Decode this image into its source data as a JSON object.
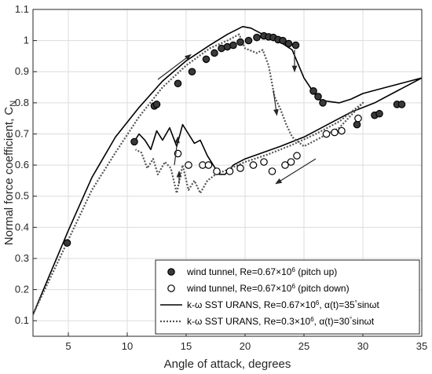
{
  "chart_data": {
    "type": "scatter",
    "xlabel": "Angle of attack, degrees",
    "ylabel_main": "Normal force coefficient, C",
    "ylabel_sub": "N",
    "xlim": [
      2,
      35
    ],
    "ylim": [
      0.05,
      1.1
    ],
    "xticks": [
      5,
      10,
      15,
      20,
      25,
      30,
      35
    ],
    "yticks": [
      0.1,
      0.2,
      0.3,
      0.4,
      0.5,
      0.6,
      0.7,
      0.8,
      0.9,
      1,
      1.1
    ],
    "grid": true,
    "legend_position": "bottom-right",
    "legend": [
      {
        "marker": "filled-circle",
        "prefix": "wind tunnel, Re=0.67×10",
        "sup": "6",
        "suffix": " (pitch up)"
      },
      {
        "marker": "open-circle",
        "prefix": "wind tunnel, Re=0.67×10",
        "sup": "6",
        "suffix": " (pitch down)"
      },
      {
        "marker": "solid-line",
        "prefix": "k-ω SST URANS, Re=0.67×10",
        "sup": "6",
        "suffix": ", α(t)=35",
        "deg": "°",
        "tail": "sinωt"
      },
      {
        "marker": "dotted-line",
        "prefix": "k-ω SST URANS, Re=0.3×10",
        "sup": "6",
        "suffix": ", α(t)=30",
        "deg": "°",
        "tail": "sinωt"
      }
    ],
    "series": [
      {
        "kind": "filled-markers",
        "points": [
          [
            4.9,
            0.35
          ],
          [
            10.6,
            0.675
          ],
          [
            12.3,
            0.79
          ],
          [
            12.5,
            0.795
          ],
          [
            14.3,
            0.862
          ],
          [
            15.5,
            0.9
          ],
          [
            16.7,
            0.94
          ],
          [
            17.4,
            0.96
          ],
          [
            18.0,
            0.975
          ],
          [
            18.5,
            0.98
          ],
          [
            19.0,
            0.985
          ],
          [
            19.6,
            0.995
          ],
          [
            20.3,
            1.0
          ],
          [
            21.0,
            1.01
          ],
          [
            21.6,
            1.015
          ],
          [
            22.0,
            1.012
          ],
          [
            22.4,
            1.01
          ],
          [
            22.8,
            1.003
          ],
          [
            23.2,
            1.0
          ],
          [
            23.7,
            0.99
          ],
          [
            24.3,
            0.985
          ],
          [
            25.8,
            0.838
          ],
          [
            26.2,
            0.82
          ],
          [
            26.6,
            0.8
          ],
          [
            29.5,
            0.73
          ],
          [
            31.0,
            0.76
          ],
          [
            31.4,
            0.765
          ],
          [
            32.9,
            0.795
          ],
          [
            33.3,
            0.795
          ]
        ]
      },
      {
        "kind": "open-markers",
        "points": [
          [
            14.3,
            0.637
          ],
          [
            15.2,
            0.6
          ],
          [
            16.4,
            0.6
          ],
          [
            16.9,
            0.6
          ],
          [
            17.6,
            0.58
          ],
          [
            18.7,
            0.58
          ],
          [
            19.6,
            0.59
          ],
          [
            20.7,
            0.6
          ],
          [
            21.6,
            0.61
          ],
          [
            22.3,
            0.58
          ],
          [
            23.4,
            0.6
          ],
          [
            23.9,
            0.61
          ],
          [
            24.4,
            0.63
          ],
          [
            26.9,
            0.7
          ],
          [
            27.6,
            0.705
          ],
          [
            28.2,
            0.71
          ],
          [
            29.6,
            0.75
          ]
        ]
      },
      {
        "kind": "solid-line",
        "points": [
          [
            2,
            0.12
          ],
          [
            5,
            0.39
          ],
          [
            7,
            0.56
          ],
          [
            9,
            0.69
          ],
          [
            11,
            0.785
          ],
          [
            13,
            0.87
          ],
          [
            15,
            0.935
          ],
          [
            17,
            0.985
          ],
          [
            18.5,
            1.02
          ],
          [
            19.8,
            1.045
          ],
          [
            20.5,
            1.04
          ],
          [
            21.5,
            1.02
          ],
          [
            23,
            0.995
          ],
          [
            24,
            0.97
          ],
          [
            25,
            0.88
          ],
          [
            25.7,
            0.84
          ],
          [
            26.3,
            0.81
          ],
          [
            27,
            0.805
          ],
          [
            28,
            0.8
          ],
          [
            29,
            0.812
          ],
          [
            30,
            0.83
          ],
          [
            32,
            0.85
          ],
          [
            34,
            0.87
          ],
          [
            35,
            0.88
          ],
          [
            33,
            0.84
          ],
          [
            31,
            0.8
          ],
          [
            29,
            0.77
          ],
          [
            27,
            0.73
          ],
          [
            25,
            0.69
          ],
          [
            23,
            0.66
          ],
          [
            21.5,
            0.64
          ],
          [
            20,
            0.62
          ],
          [
            19,
            0.6
          ],
          [
            18.3,
            0.57
          ],
          [
            17.8,
            0.57
          ],
          [
            17.3,
            0.6
          ],
          [
            16.8,
            0.63
          ],
          [
            16.2,
            0.68
          ],
          [
            15.7,
            0.67
          ],
          [
            15.2,
            0.7
          ],
          [
            14.7,
            0.73
          ],
          [
            14.2,
            0.66
          ],
          [
            13.6,
            0.72
          ],
          [
            13,
            0.68
          ],
          [
            12.5,
            0.71
          ],
          [
            12,
            0.65
          ],
          [
            11.5,
            0.68
          ],
          [
            11,
            0.7
          ],
          [
            10.5,
            0.67
          ]
        ]
      },
      {
        "kind": "dotted-line",
        "points": [
          [
            2,
            0.12
          ],
          [
            5,
            0.36
          ],
          [
            7,
            0.52
          ],
          [
            9,
            0.64
          ],
          [
            11,
            0.755
          ],
          [
            13,
            0.85
          ],
          [
            15,
            0.92
          ],
          [
            17,
            0.975
          ],
          [
            18.5,
            1.0
          ],
          [
            19.5,
            1.02
          ],
          [
            20,
            0.975
          ],
          [
            21,
            0.96
          ],
          [
            21.5,
            0.97
          ],
          [
            22,
            0.92
          ],
          [
            22.5,
            0.82
          ],
          [
            23,
            0.78
          ],
          [
            23.5,
            0.73
          ],
          [
            24,
            0.69
          ],
          [
            25,
            0.66
          ],
          [
            26,
            0.68
          ],
          [
            28,
            0.72
          ],
          [
            30,
            0.8
          ],
          [
            28,
            0.74
          ],
          [
            26,
            0.7
          ],
          [
            24,
            0.665
          ],
          [
            22,
            0.635
          ],
          [
            20,
            0.61
          ],
          [
            18.5,
            0.585
          ],
          [
            17.5,
            0.57
          ],
          [
            16.8,
            0.55
          ],
          [
            16.2,
            0.51
          ],
          [
            15.7,
            0.55
          ],
          [
            15.2,
            0.52
          ],
          [
            14.7,
            0.6
          ],
          [
            14.2,
            0.51
          ],
          [
            13.7,
            0.59
          ],
          [
            13.2,
            0.61
          ],
          [
            12.6,
            0.57
          ],
          [
            12.2,
            0.62
          ],
          [
            11.7,
            0.59
          ],
          [
            11.2,
            0.64
          ],
          [
            10.7,
            0.65
          ]
        ]
      }
    ],
    "arrows": [
      {
        "from": [
          12.6,
          0.875
        ],
        "to": [
          15.4,
          0.955
        ],
        "head": "end"
      },
      {
        "from": [
          14.0,
          0.6
        ],
        "to": [
          14.3,
          0.69
        ],
        "head": "end"
      },
      {
        "from": [
          14.4,
          0.54
        ],
        "to": [
          14.4,
          0.58
        ],
        "head": "end"
      },
      {
        "from": [
          22.7,
          0.76
        ],
        "to": [
          22.4,
          0.84
        ],
        "head": "start"
      },
      {
        "from": [
          24.2,
          0.9
        ],
        "to": [
          24.2,
          0.97
        ],
        "head": "start"
      },
      {
        "from": [
          22.6,
          0.54
        ],
        "to": [
          26.0,
          0.62
        ],
        "head": "start"
      }
    ]
  }
}
